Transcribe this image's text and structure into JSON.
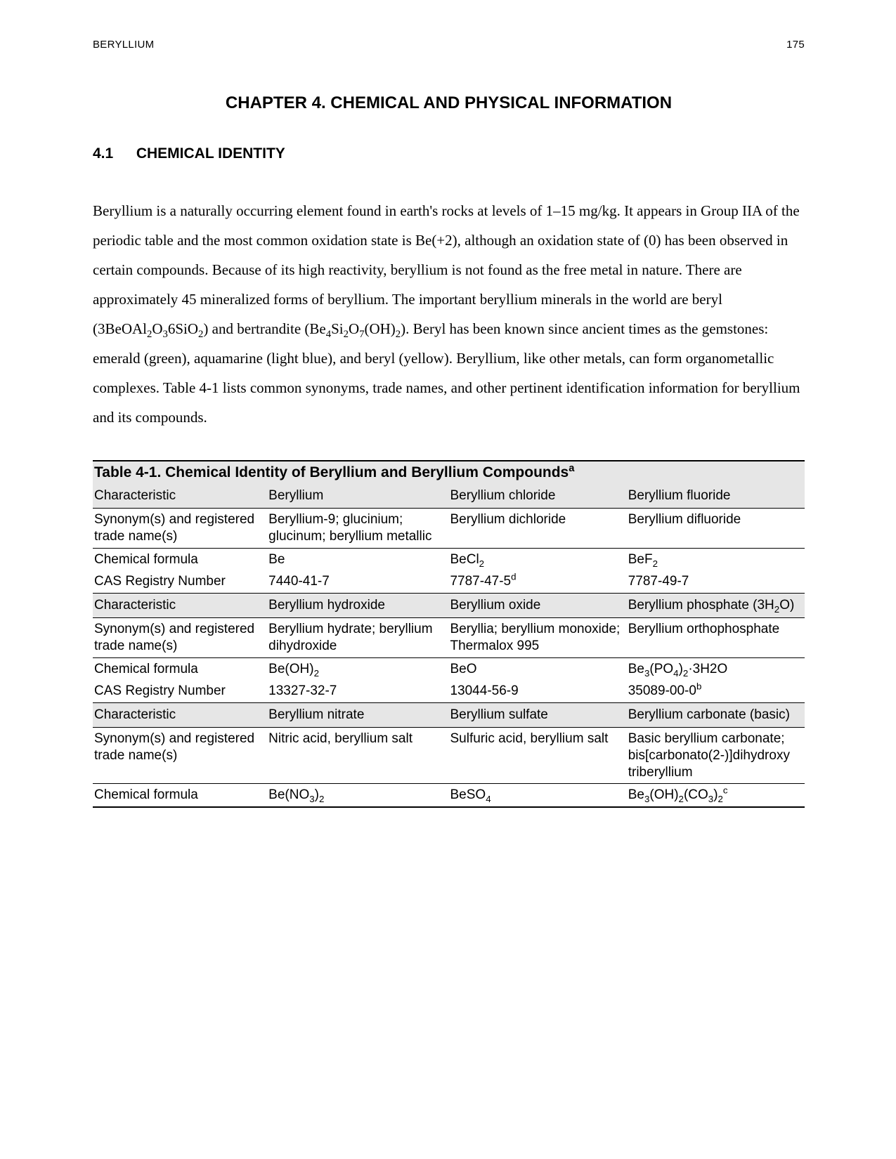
{
  "header": {
    "doc_title": "BERYLLIUM",
    "page_number": "175"
  },
  "chapter": {
    "title": "CHAPTER 4.  CHEMICAL AND PHYSICAL INFORMATION"
  },
  "section": {
    "number": "4.1",
    "title": "CHEMICAL IDENTITY"
  },
  "paragraph_html": "Beryllium is a naturally occurring element found in earth's rocks at levels of 1–15 mg/kg.  It appears in Group IIA of the periodic table and the most common oxidation state is Be(+2), although an oxidation state of (0) has been observed in certain compounds.  Because of its high reactivity, beryllium is not found as the free metal in nature.  There are approximately 45 mineralized forms of beryllium.  The important beryllium minerals in the world are beryl (3BeOAl<sub>2</sub>O<sub>3</sub>6SiO<sub>2</sub>) and bertrandite (Be<sub>4</sub>Si<sub>2</sub>O<sub>7</sub>(OH)<sub>2</sub>).  Beryl has been known since ancient times as the gemstones: emerald (green), aquamarine (light blue), and beryl (yellow).  Beryllium, like other metals, can form organometallic complexes.  Table 4-1 lists common synonyms, trade names, and other pertinent identification information for beryllium and its compounds.",
  "table": {
    "title_html": "Table 4-1.  Chemical Identity of Beryllium and Beryllium Compounds<sup>a</sup>",
    "row_label": {
      "characteristic": "Characteristic",
      "synonyms": "Synonym(s) and registered trade name(s)",
      "formula": "Chemical formula",
      "cas": "CAS Registry Number"
    },
    "blocks": [
      {
        "cols": [
          "Beryllium",
          "Beryllium chloride",
          "Beryllium fluoride"
        ],
        "synonyms": [
          "Beryllium-9; glucinium; glucinum; beryllium metallic",
          "Beryllium dichloride",
          "Beryllium difluoride"
        ],
        "formula_html": [
          "Be",
          "BeCl<sub>2</sub>",
          "BeF<sub>2</sub>"
        ],
        "cas_html": [
          "7440-41-7",
          "7787-47-5<sup>d</sup>",
          "7787-49-7"
        ]
      },
      {
        "cols_html": [
          "Beryllium hydroxide",
          "Beryllium oxide",
          "Beryllium phosphate (3H<sub>2</sub>O)"
        ],
        "synonyms": [
          "Beryllium hydrate; beryllium dihydroxide",
          "Beryllia; beryllium monoxide; Thermalox 995",
          "Beryllium orthophosphate"
        ],
        "formula_html": [
          "Be(OH)<sub>2</sub>",
          "BeO",
          "Be<sub>3</sub>(PO<sub>4</sub>)<sub>2</sub>·3H2O"
        ],
        "cas_html": [
          "13327-32-7",
          "13044-56-9",
          "35089-00-0<sup>b</sup>"
        ]
      },
      {
        "cols": [
          "Beryllium nitrate",
          "Beryllium sulfate",
          "Beryllium carbonate (basic)"
        ],
        "synonyms": [
          "Nitric acid, beryllium salt",
          "Sulfuric acid, beryllium salt",
          "Basic beryllium carbonate; bis[carbonato(2-)]dihydroxy triberyllium"
        ],
        "formula_html": [
          "Be(NO<sub>3</sub>)<sub>2</sub>",
          "BeSO<sub>4</sub>",
          "Be<sub>3</sub>(OH)<sub>2</sub>(CO<sub>3</sub>)<sub>2</sub><sup>c</sup>"
        ]
      }
    ]
  },
  "style": {
    "shade_bg": "#e6e6e6",
    "rule_color": "#000000",
    "page_bg": "#ffffff",
    "body_font_pt": 16,
    "sans_font_pt": 14
  }
}
